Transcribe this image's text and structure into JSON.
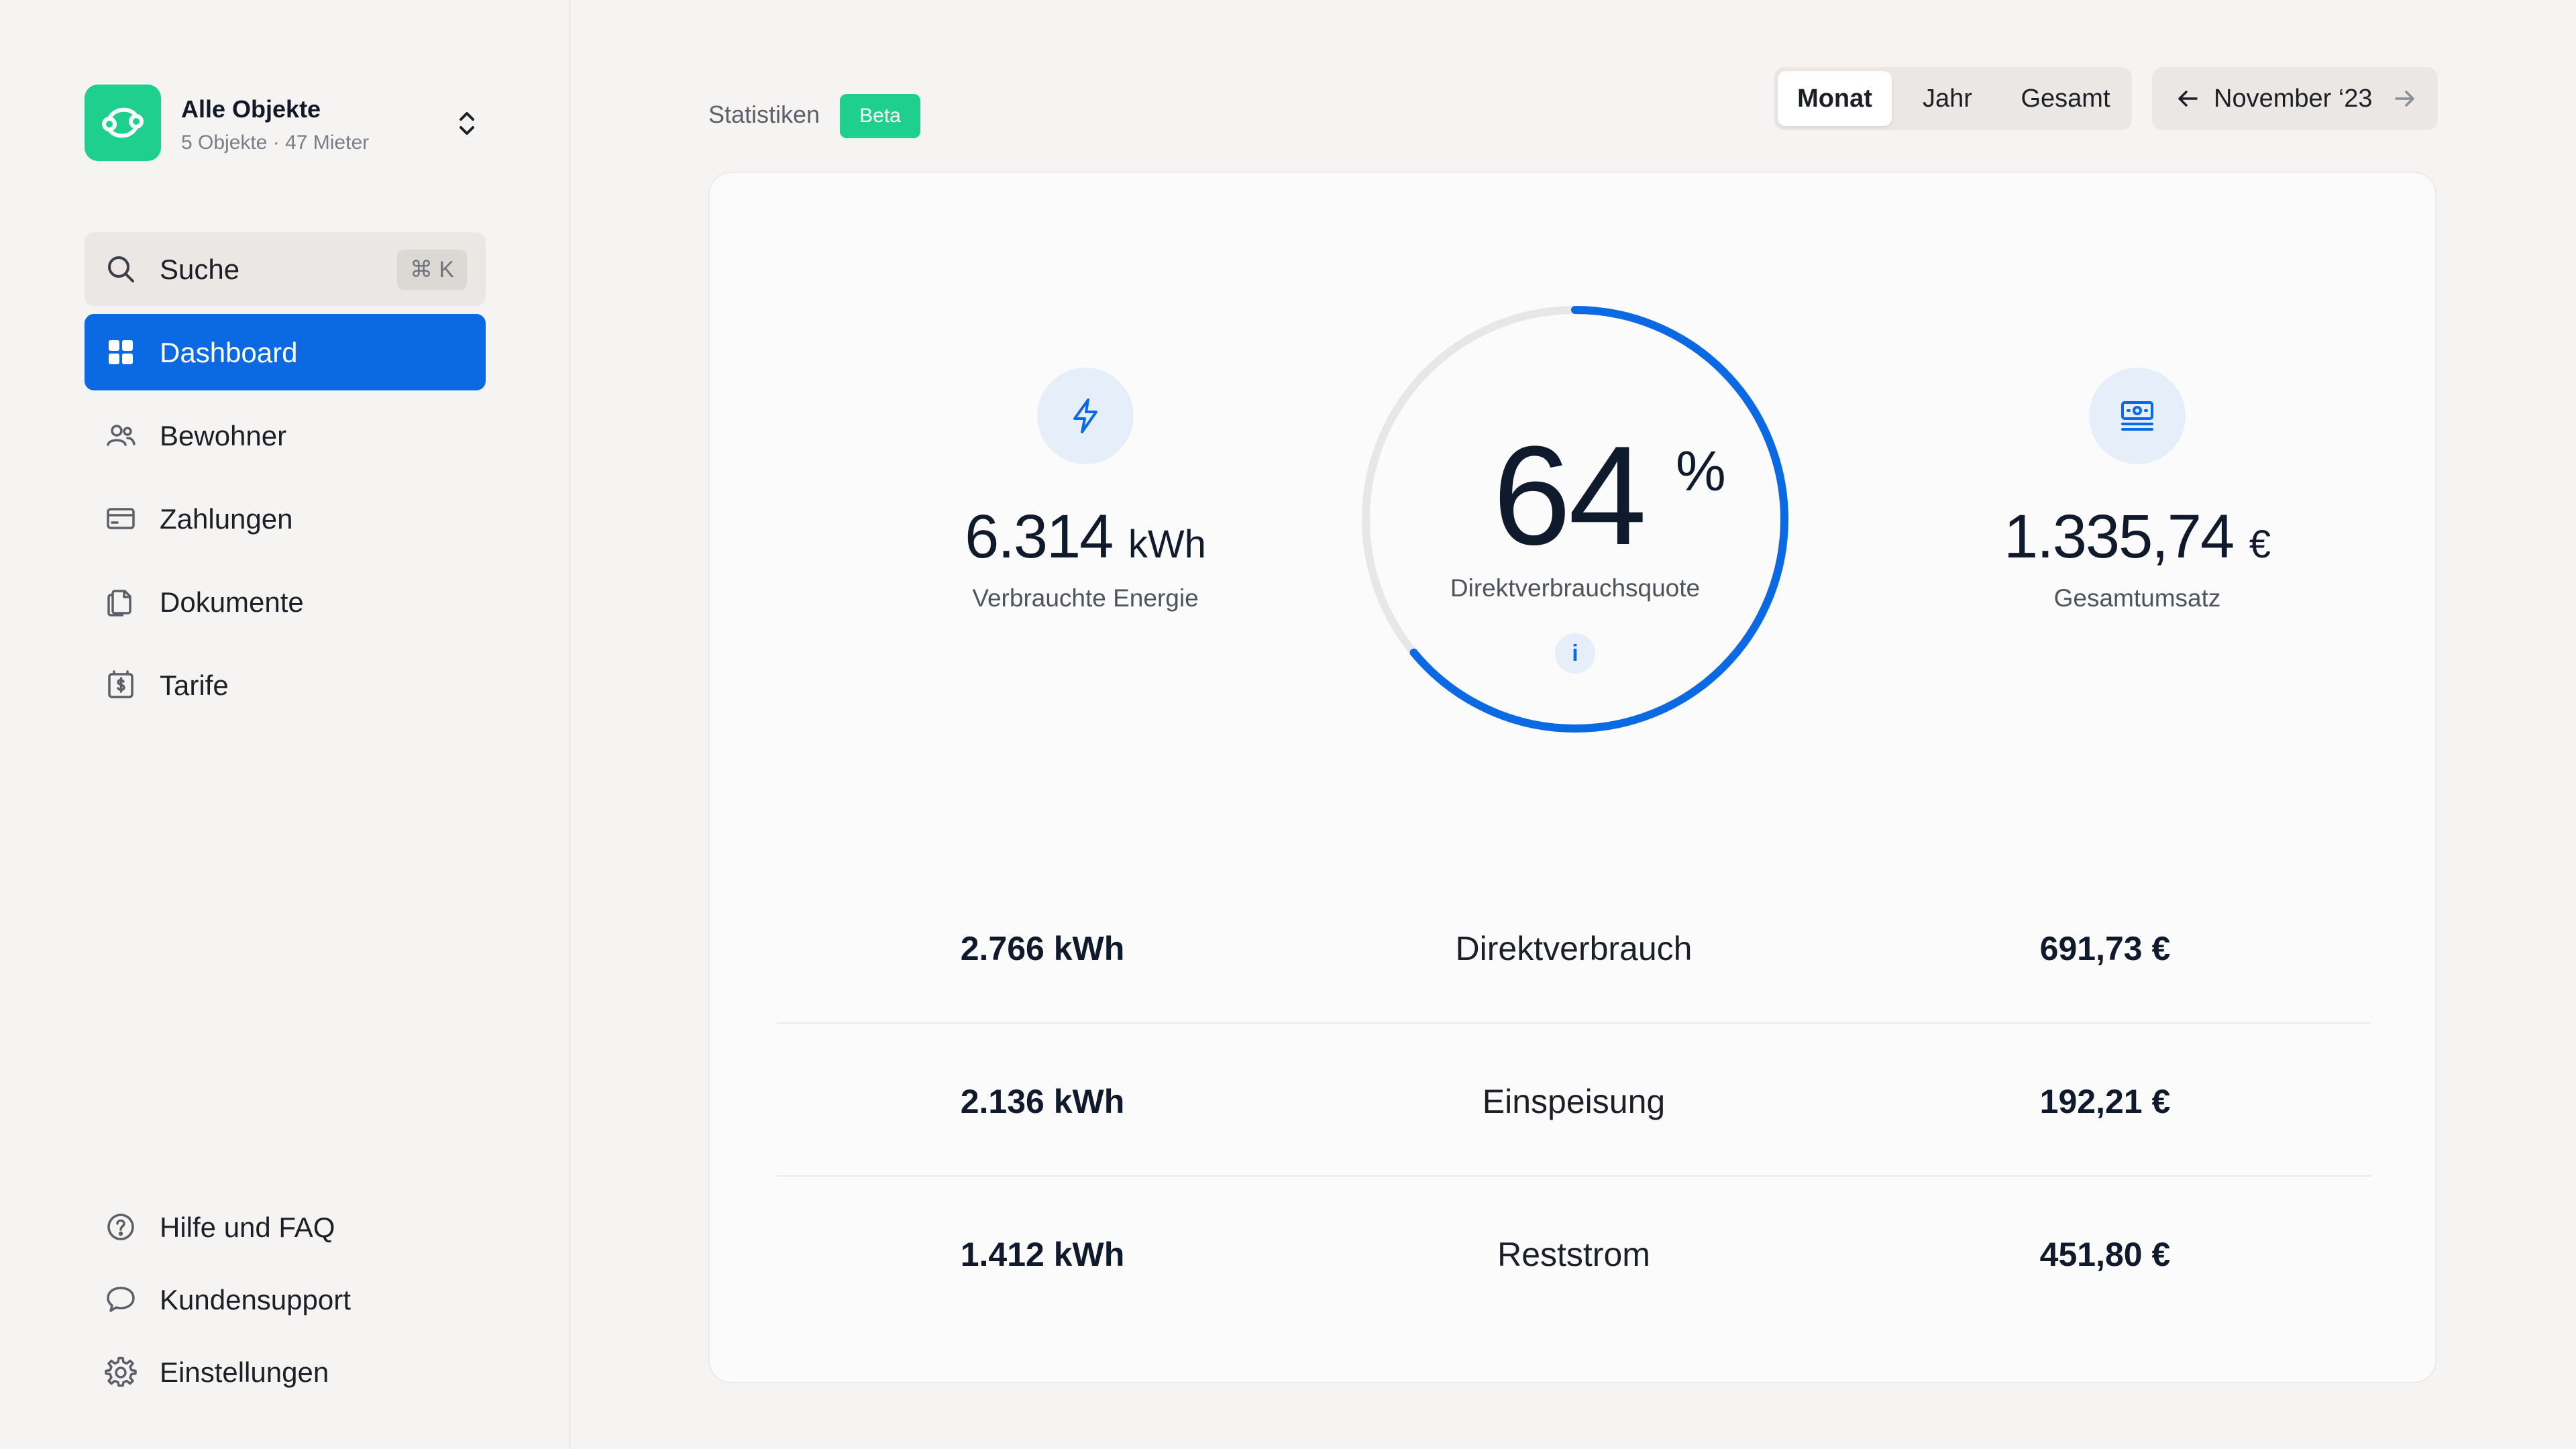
{
  "sidebar": {
    "org": {
      "title": "Alle Objekte",
      "subtitle": "5 Objekte · 47 Mieter"
    },
    "search": {
      "label": "Suche",
      "shortcut": "⌘ K"
    },
    "nav": [
      {
        "label": "Dashboard",
        "icon": "dashboard-icon",
        "active": true
      },
      {
        "label": "Bewohner",
        "icon": "users-icon"
      },
      {
        "label": "Zahlungen",
        "icon": "credit-card-icon"
      },
      {
        "label": "Dokumente",
        "icon": "documents-icon"
      },
      {
        "label": "Tarife",
        "icon": "tariff-icon"
      }
    ],
    "footer": [
      {
        "label": "Hilfe und FAQ",
        "icon": "help-icon"
      },
      {
        "label": "Kundensupport",
        "icon": "chat-icon"
      },
      {
        "label": "Einstellungen",
        "icon": "gear-icon"
      }
    ]
  },
  "header": {
    "title": "Statistiken",
    "badge": "Beta",
    "range_tabs": [
      "Monat",
      "Jahr",
      "Gesamt"
    ],
    "active_tab": "Monat",
    "period": "November ‘23"
  },
  "stats": {
    "energy": {
      "value": "6.314",
      "unit": "kWh",
      "label": "Verbrauchte Energie"
    },
    "quota": {
      "value": "64",
      "unit": "%",
      "label": "Direktverbrauchsquote",
      "fraction": 0.64,
      "info": "i"
    },
    "revenue": {
      "value": "1.335,74",
      "unit": "€",
      "label": "Gesamtumsatz"
    }
  },
  "table": [
    {
      "energy": "2.766 kWh",
      "category": "Direktverbrauch",
      "amount": "691,73 €"
    },
    {
      "energy": "2.136 kWh",
      "category": "Einspeisung",
      "amount": "192,21 €"
    },
    {
      "energy": "1.412 kWh",
      "category": "Reststrom",
      "amount": "451,80 €"
    }
  ],
  "colors": {
    "accent": "#0b6ae3",
    "brand": "#1fcf8e"
  }
}
